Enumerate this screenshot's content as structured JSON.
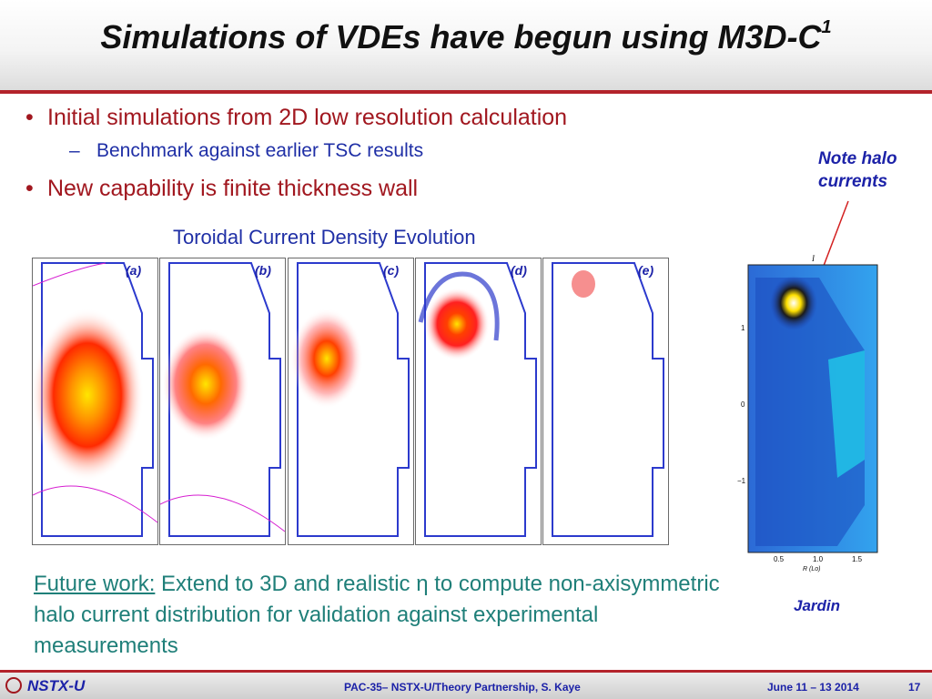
{
  "title": {
    "text": "Simulations of VDEs have begun using M3D-C",
    "superscript": "1"
  },
  "bullets": [
    {
      "text": "Initial simulations from 2D low resolution calculation",
      "sub": "Benchmark against earlier TSC results"
    },
    {
      "text": "New capability is finite thickness wall"
    }
  ],
  "note": {
    "line1": "Note halo",
    "line2": "currents"
  },
  "figure": {
    "caption": "Toroidal Current Density Evolution",
    "panel_labels": [
      "(a)",
      "(b)",
      "(c)",
      "(d)",
      "(e)"
    ]
  },
  "jardin": {
    "label": "Jardin",
    "y_ticks": [
      "1",
      "0",
      "−1"
    ],
    "x_ticks": [
      "0.5",
      "1.0",
      "1.5"
    ],
    "x_axis_label": "R (Lo)",
    "top_label": "I"
  },
  "future_work": {
    "lead": "Future work:",
    "text": " Extend to 3D and realistic η to compute non-axisymmetric halo current distribution for validation against experimental measurements"
  },
  "footer": {
    "logo_text": "NSTX-U",
    "center": "PAC-35– NSTX-U/Theory Partnership, S. Kaye",
    "date": "June 11 – 13 2014",
    "page": "17"
  },
  "colors": {
    "accent_red": "#b3232b",
    "text_blue": "#1c22a8",
    "teal": "#1f7f79",
    "bullet_red": "#a1171f"
  }
}
